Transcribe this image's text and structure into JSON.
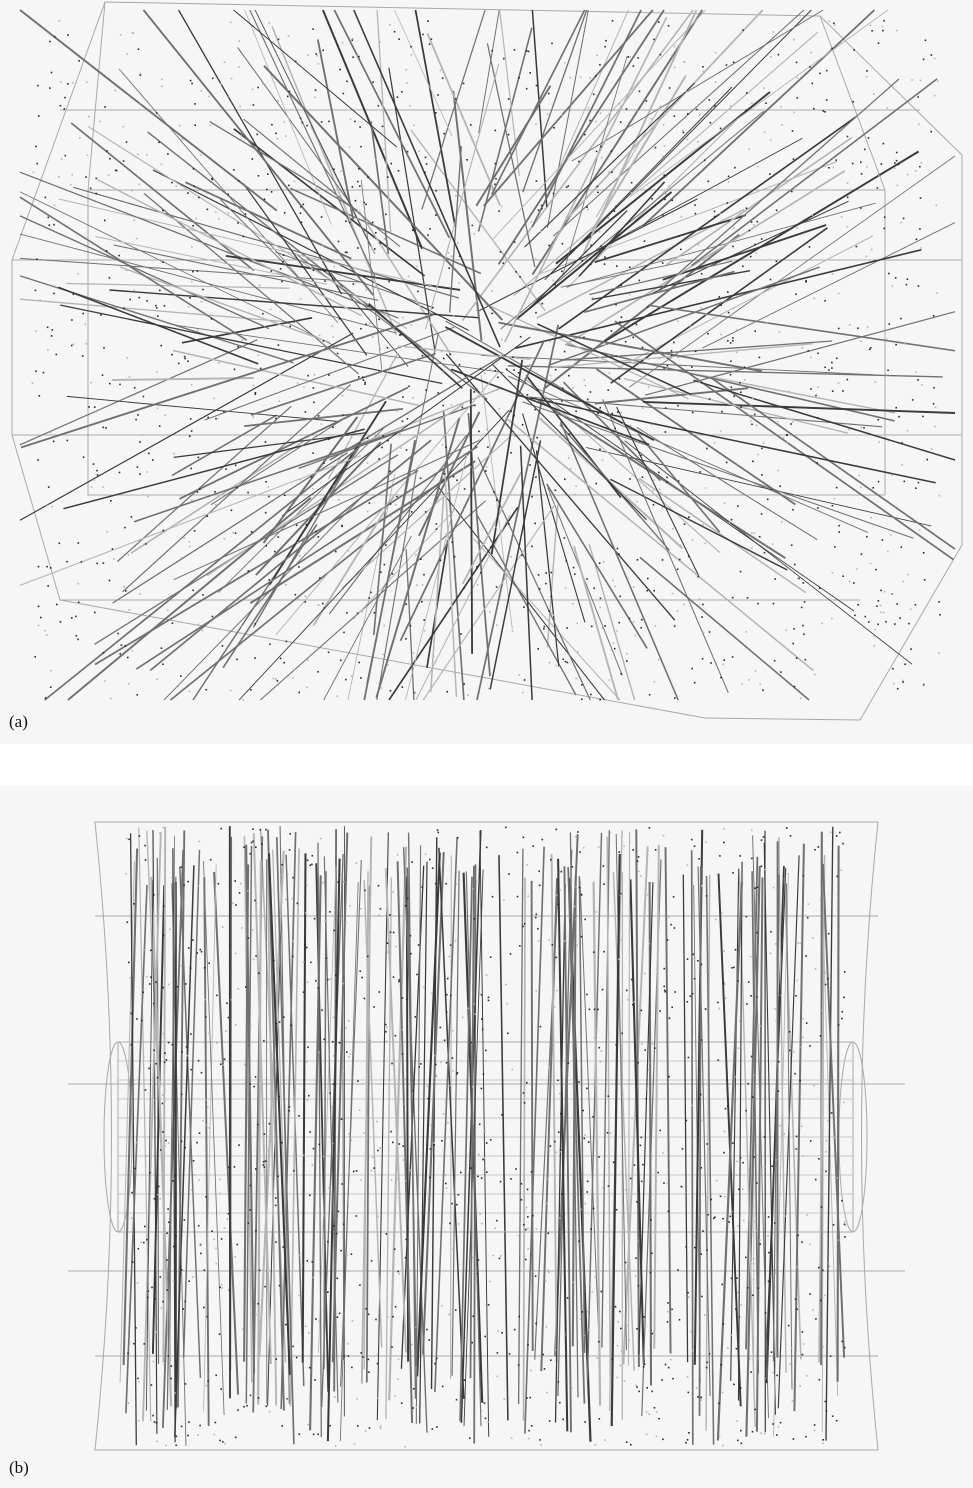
{
  "figure": {
    "panel_a": {
      "label": "(a)"
    },
    "panel_b": {
      "label": "(b)"
    }
  },
  "colors": {
    "background": "#f6f6f6",
    "frame": "#a9a9a9",
    "track_dark": "#3a3a3a",
    "track_mid": "#707070",
    "track_light": "#b4b4b4",
    "hit": "#2a2a2a"
  }
}
